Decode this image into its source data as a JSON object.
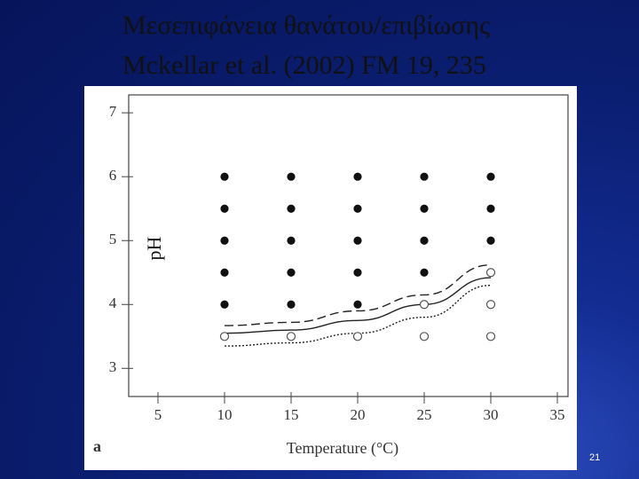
{
  "slide": {
    "title_lines": [
      "Μεσεπιφάνεια θανάτου/επιβίωσης",
      "Mckellar et al. (2002) FM 19, 235"
    ],
    "page_number": "21"
  },
  "chart_data": {
    "type": "scatter",
    "x_label": "Temperature (°C)",
    "y_label": "pH",
    "panel_label": "a",
    "xlim": [
      2.8,
      35.8
    ],
    "ylim": [
      2.56,
      7.28
    ],
    "xticks": [
      5,
      10,
      15,
      20,
      25,
      30,
      35
    ],
    "yticks": [
      3,
      4,
      5,
      6,
      7
    ],
    "series": [
      {
        "marker": "filled",
        "color": "#111111",
        "x": [
          10,
          10,
          10,
          10,
          10,
          15,
          15,
          15,
          15,
          15,
          20,
          20,
          20,
          20,
          20,
          25,
          25,
          25,
          25,
          30,
          30,
          30
        ],
        "values": [
          4,
          4.5,
          5,
          5.5,
          6,
          4,
          4.5,
          5,
          5.5,
          6,
          4,
          4.5,
          5,
          5.5,
          6,
          4.5,
          5,
          5.5,
          6,
          5,
          5.5,
          6
        ]
      },
      {
        "marker": "open",
        "color": "#555555",
        "x": [
          10,
          15,
          20,
          25,
          25,
          30,
          30,
          30
        ],
        "values": [
          3.5,
          3.5,
          3.5,
          3.5,
          4,
          3.5,
          4,
          4.5
        ]
      },
      {
        "marker": "line",
        "dash": "solid",
        "color": "#222222",
        "x": [
          10,
          15,
          20,
          25,
          30
        ],
        "values": [
          3.55,
          3.6,
          3.75,
          4.0,
          4.42
        ]
      },
      {
        "marker": "line",
        "dash": "dashed",
        "color": "#222222",
        "x": [
          10,
          15,
          20,
          25,
          30
        ],
        "values": [
          3.67,
          3.72,
          3.9,
          4.15,
          4.62
        ]
      },
      {
        "marker": "line",
        "dash": "dotted",
        "color": "#222222",
        "x": [
          10,
          15,
          20,
          25,
          30
        ],
        "values": [
          3.35,
          3.4,
          3.55,
          3.8,
          4.3
        ]
      }
    ]
  }
}
